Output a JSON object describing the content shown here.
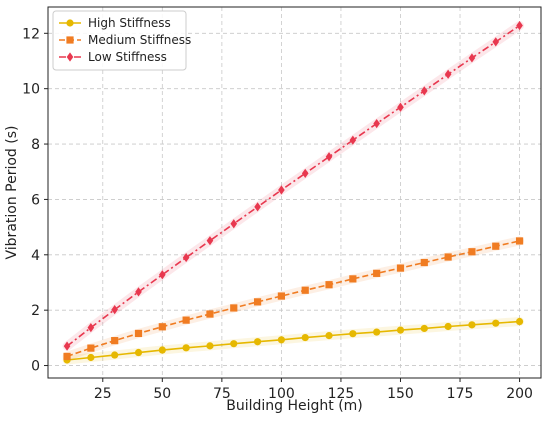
{
  "chart_data": {
    "type": "line",
    "title": "",
    "xlabel": "Building Height (m)",
    "ylabel": "Vibration Period (s)",
    "xlim": [
      2,
      209
    ],
    "ylim": [
      -0.45,
      12.95
    ],
    "xticks": [
      25,
      50,
      75,
      100,
      125,
      150,
      175,
      200
    ],
    "yticks": [
      0,
      2,
      4,
      6,
      8,
      10,
      12
    ],
    "grid": true,
    "legend_position": "top-left",
    "x": [
      10,
      20,
      30,
      40,
      50,
      60,
      70,
      80,
      90,
      100,
      110,
      120,
      130,
      140,
      150,
      160,
      170,
      180,
      190,
      200
    ],
    "series": [
      {
        "name": "High Stiffness",
        "color": "#e6b800",
        "marker": "circle",
        "dash": "solid",
        "values": [
          0.2,
          0.29,
          0.38,
          0.47,
          0.56,
          0.64,
          0.71,
          0.79,
          0.86,
          0.93,
          1.01,
          1.08,
          1.15,
          1.21,
          1.28,
          1.34,
          1.41,
          1.47,
          1.53,
          1.59
        ]
      },
      {
        "name": "Medium Stiffness",
        "color": "#f07c22",
        "marker": "square",
        "dash": "dashed",
        "values": [
          0.33,
          0.63,
          0.9,
          1.16,
          1.4,
          1.64,
          1.86,
          2.08,
          2.3,
          2.51,
          2.72,
          2.92,
          3.13,
          3.33,
          3.52,
          3.72,
          3.92,
          4.11,
          4.31,
          4.5
        ]
      },
      {
        "name": "Low Stiffness",
        "color": "#e8384f",
        "marker": "diamond",
        "dash": "dashdot",
        "values": [
          0.7,
          1.37,
          2.02,
          2.66,
          3.28,
          3.9,
          4.51,
          5.12,
          5.73,
          6.34,
          6.94,
          7.54,
          8.14,
          8.74,
          9.33,
          9.92,
          10.52,
          11.11,
          11.69,
          12.28
        ]
      }
    ]
  }
}
